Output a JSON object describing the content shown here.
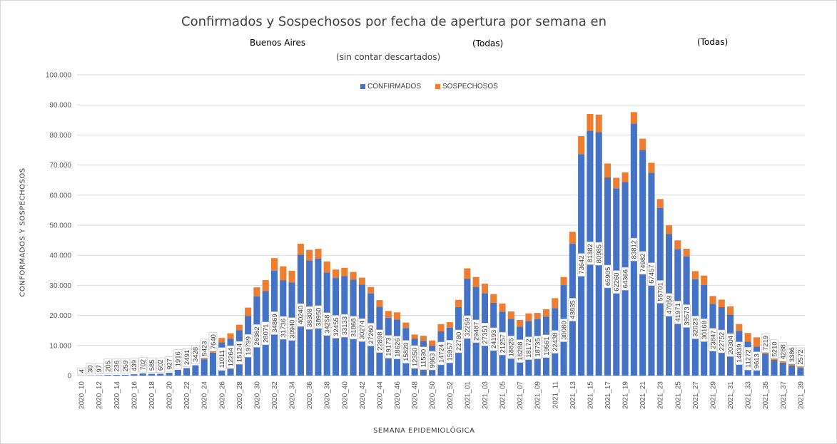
{
  "chart_data": {
    "type": "bar",
    "stacked": true,
    "title": "Confirmados y Sospechosos por fecha de apertura por semana en",
    "subtitle_parts": [
      "Buenos Aires",
      "(Todas)",
      "(Todas)",
      "(sin contar descartados)"
    ],
    "xlabel": "SEMANA EPIDEMIOLÓGICA",
    "ylabel": "CONFORMADOS Y SOSPECHOSOS",
    "ylim": [
      0,
      100000
    ],
    "yticks": [
      "0",
      "10.000",
      "20.000",
      "30.000",
      "40.000",
      "50.000",
      "60.000",
      "70.000",
      "80.000",
      "90.000",
      "100.000"
    ],
    "grid": true,
    "legend_position": "top",
    "colors": {
      "confirmados": "#4472c4",
      "sospechosos": "#ed7d31"
    },
    "categories": [
      "2020_10",
      "2020_11",
      "2020_12",
      "2020_13",
      "2020_14",
      "2020_15",
      "2020_16",
      "2020_17",
      "2020_18",
      "2020_19",
      "2020_20",
      "2020_21",
      "2020_22",
      "2020_23",
      "2020_24",
      "2020_25",
      "2020_26",
      "2020_27",
      "2020_28",
      "2020_29",
      "2020_30",
      "2020_31",
      "2020_32",
      "2020_33",
      "2020_34",
      "2020_35",
      "2020_36",
      "2020_37",
      "2020_38",
      "2020_39",
      "2020_40",
      "2020_41",
      "2020_42",
      "2020_43",
      "2020_44",
      "2020_45",
      "2020_46",
      "2020_47",
      "2020_48",
      "2020_49",
      "2020_50",
      "2020_51",
      "2020_52",
      "2020_53",
      "2021_01",
      "2021_02",
      "2021_03",
      "2021_04",
      "2021_05",
      "2021_06",
      "2021_07",
      "2021_08",
      "2021_09",
      "2021_10",
      "2021_11",
      "2021_12",
      "2021_13",
      "2021_14",
      "2021_15",
      "2021_16",
      "2021_17",
      "2021_18",
      "2021_19",
      "2021_20",
      "2021_21",
      "2021_22",
      "2021_23",
      "2021_24",
      "2021_25",
      "2021_26",
      "2021_27",
      "2021_28",
      "2021_29",
      "2021_30",
      "2021_31",
      "2021_32",
      "2021_33",
      "2021_34",
      "2021_35",
      "2021_36",
      "2021_37",
      "2021_38",
      "2021_39"
    ],
    "x_tick_labels": [
      "2020_10",
      "2020_12",
      "2020_14",
      "2020_16",
      "2020_18",
      "2020_20",
      "2020_22",
      "2020_24",
      "2020_26",
      "2020_28",
      "2020_30",
      "2020_32",
      "2020_34",
      "2020_36",
      "2020_38",
      "2020_40",
      "2020_42",
      "2020_44",
      "2020_46",
      "2020_48",
      "2020_50",
      "2020_52",
      "2021_01",
      "2021_03",
      "2021_05",
      "2021_07",
      "2021_09",
      "2021_11",
      "2021_13",
      "2021_15",
      "2021_17",
      "2021_19",
      "2021_21",
      "2021_23",
      "2021_25",
      "2021_27",
      "2021_29",
      "2021_31",
      "2021_33",
      "2021_35",
      "2021_37",
      "2021_39"
    ],
    "series": [
      {
        "name": "CONFIRMADOS",
        "values": [
          4,
          30,
          97,
          205,
          236,
          259,
          439,
          702,
          585,
          602,
          927,
          1916,
          2491,
          3428,
          5423,
          7640,
          11011,
          12264,
          15124,
          19799,
          26362,
          28071,
          34869,
          31736,
          30940,
          40240,
          38308,
          38950,
          34258,
          32455,
          33133,
          31868,
          30274,
          27260,
          22898,
          19173,
          18626,
          15820,
          12350,
          11530,
          9963,
          14724,
          15957,
          22780,
          32259,
          29487,
          27351,
          24193,
          21257,
          18825,
          16288,
          18172,
          18735,
          19561,
          22438,
          30080,
          43835,
          73642,
          81382,
          80985,
          65905,
          62260,
          64366,
          83812,
          74982,
          67457,
          55701,
          47059,
          41971,
          39573,
          32023,
          30168,
          23847,
          22752,
          20304,
          14839,
          11272,
          9613,
          7219,
          5210,
          4288,
          3386,
          2572
        ]
      },
      {
        "name": "SOSPECHOSOS",
        "values": [
          0,
          0,
          0,
          0,
          0,
          0,
          0,
          0,
          0,
          0,
          0,
          0,
          0,
          0,
          400,
          800,
          1500,
          1800,
          1800,
          2800,
          3000,
          3700,
          4200,
          4600,
          3900,
          3600,
          3500,
          3200,
          3700,
          2800,
          2700,
          2600,
          2300,
          2200,
          2200,
          2300,
          2400,
          1800,
          1300,
          1700,
          1700,
          2400,
          1800,
          2400,
          3400,
          3300,
          3200,
          2900,
          2700,
          2500,
          2200,
          2500,
          2100,
          2500,
          3300,
          2700,
          4000,
          6000,
          5600,
          5800,
          4600,
          3500,
          3200,
          3800,
          3800,
          3300,
          3000,
          2900,
          3000,
          2600,
          2700,
          3100,
          2600,
          2500,
          2700,
          2300,
          2900,
          3100,
          2900,
          2600,
          2600,
          2700,
          5800
        ]
      }
    ]
  }
}
